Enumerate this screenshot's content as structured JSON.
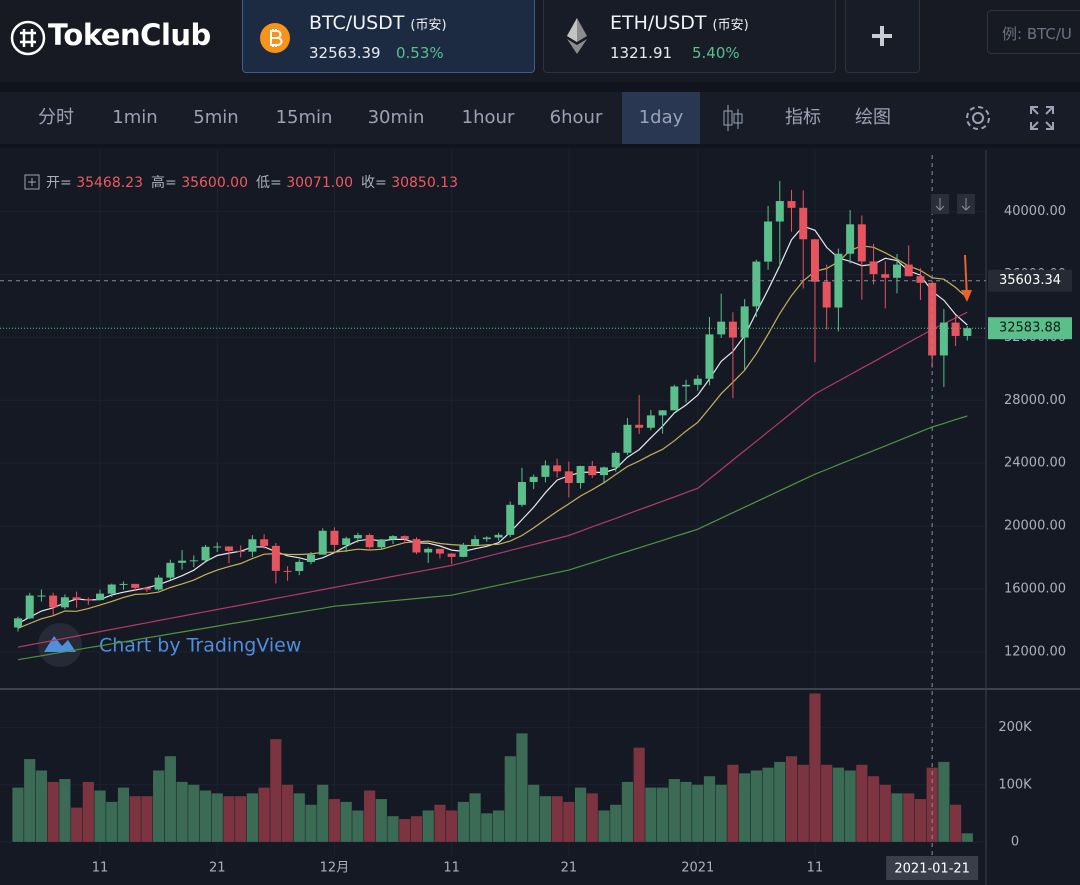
{
  "header": {
    "logo": "TokenClub",
    "tabs": [
      {
        "pair": "BTC/USDT",
        "exchange": "(币安)",
        "price": 32563.39,
        "change": "0.53%",
        "active": true
      },
      {
        "pair": "ETH/USDT",
        "exchange": "(币安)",
        "price": 1321.91,
        "change": "5.40%",
        "active": false
      }
    ],
    "search_placeholder": "例: BTC/U"
  },
  "toolbar": {
    "intervals": [
      {
        "label": "分时"
      },
      {
        "label": "1min"
      },
      {
        "label": "5min"
      },
      {
        "label": "15min"
      },
      {
        "label": "30min"
      },
      {
        "label": "1hour"
      },
      {
        "label": "6hour"
      },
      {
        "label": "1day",
        "active": true
      }
    ],
    "tools": [
      "指标",
      "绘图"
    ]
  },
  "chart_data": {
    "type": "candlestick",
    "legend": [
      {
        "name": "开=",
        "value": 35468.23,
        "label": "35468.23"
      },
      {
        "name": "高=",
        "value": 35600,
        "label": "35600.00"
      },
      {
        "name": "低=",
        "value": 30071,
        "label": "30071.00"
      },
      {
        "name": "收=",
        "value": 30850.13,
        "label": "30850.13"
      }
    ],
    "watermark": "Chart by TradingView",
    "categories": [
      null,
      null,
      null,
      null,
      null,
      null,
      null,
      "11",
      null,
      null,
      null,
      null,
      null,
      null,
      null,
      null,
      null,
      "21",
      null,
      null,
      null,
      null,
      null,
      null,
      null,
      null,
      null,
      "12月",
      null,
      null,
      null,
      null,
      null,
      null,
      null,
      null,
      null,
      "11",
      null,
      null,
      null,
      null,
      null,
      null,
      null,
      null,
      null,
      "21",
      null,
      null,
      null,
      null,
      null,
      null,
      null,
      null,
      null,
      null,
      "2021",
      null,
      null,
      null,
      null,
      null,
      null,
      null,
      null,
      null,
      "11",
      null,
      null,
      null,
      null,
      null,
      null,
      null,
      null,
      null,
      null,
      null,
      null,
      null
    ],
    "open": [
      13550,
      14130,
      15580,
      15580,
      14830,
      15470,
      15330,
      15300,
      15700,
      16280,
      16320,
      16070,
      15960,
      16720,
      17660,
      17800,
      17820,
      18680,
      18700,
      18420,
      18370,
      19160,
      18740,
      17150,
      17140,
      17720,
      18180,
      19700,
      18800,
      19220,
      19430,
      18650,
      19150,
      19360,
      19170,
      18320,
      18550,
      18250,
      18040,
      18800,
      19170,
      19270,
      19440,
      21350,
      22800,
      23130,
      23860,
      23480,
      22740,
      23820,
      23240,
      23730,
      24660,
      26440,
      26250,
      27040,
      27360,
      28880,
      28980,
      29370,
      32190,
      33000,
      31990,
      33970,
      36820,
      39370,
      40670,
      40240,
      38240,
      35540,
      33900,
      37320,
      39190,
      36830,
      36020,
      35790,
      36630,
      35890,
      35468.23,
      30850.13,
      32940,
      32090
    ],
    "high": [
      14240,
      15750,
      15960,
      15760,
      15650,
      15830,
      15460,
      15950,
      16340,
      16480,
      16330,
      16160,
      16880,
      17860,
      18480,
      18130,
      18800,
      18950,
      18720,
      18770,
      19420,
      19480,
      18920,
      17450,
      17880,
      18350,
      19860,
      19920,
      19320,
      19570,
      19530,
      19180,
      19420,
      19410,
      19290,
      18640,
      18560,
      18280,
      18930,
      19410,
      19350,
      19570,
      21560,
      23700,
      23280,
      24170,
      24290,
      24100,
      23840,
      24140,
      23790,
      24760,
      26870,
      28330,
      27390,
      27380,
      28990,
      29300,
      29600,
      33300,
      34780,
      33600,
      34440,
      36940,
      40360,
      41950,
      41380,
      41350,
      38260,
      36630,
      37650,
      40100,
      39750,
      37950,
      36840,
      37300,
      37850,
      36400,
      35600,
      33800,
      33400,
      32720
    ],
    "low": [
      13290,
      14090,
      15200,
      14360,
      14720,
      14810,
      14990,
      15270,
      15480,
      15950,
      15860,
      15810,
      15880,
      16560,
      17230,
      17380,
      17750,
      18350,
      17630,
      18010,
      18030,
      18570,
      16350,
      16520,
      16880,
      17570,
      18180,
      18320,
      18350,
      18940,
      18570,
      18510,
      18860,
      18920,
      18210,
      17650,
      17940,
      17580,
      18020,
      18760,
      19000,
      19080,
      19300,
      21230,
      22350,
      22780,
      23090,
      21820,
      22380,
      23060,
      22700,
      23470,
      24520,
      25860,
      26090,
      25880,
      27360,
      27850,
      28620,
      28950,
      31960,
      28130,
      29900,
      33300,
      36300,
      36500,
      38720,
      35110,
      30420,
      32500,
      32380,
      36700,
      34400,
      35370,
      33850,
      34800,
      35890,
      34380,
      30071,
      28850,
      31450,
      31800
    ],
    "close": [
      14130,
      15580,
      15580,
      14830,
      15470,
      15330,
      15300,
      15700,
      16280,
      16320,
      16070,
      15960,
      16720,
      17660,
      17800,
      17820,
      18680,
      18700,
      18420,
      18370,
      19160,
      18740,
      17150,
      17140,
      17720,
      18180,
      19700,
      18800,
      19220,
      19430,
      18650,
      19150,
      19360,
      19170,
      18320,
      18550,
      18250,
      18040,
      18800,
      19170,
      19270,
      19440,
      21350,
      22800,
      23130,
      23860,
      23480,
      22740,
      23820,
      23240,
      23730,
      24660,
      26440,
      26250,
      27040,
      27360,
      28880,
      28980,
      29370,
      32190,
      33000,
      31990,
      33970,
      36820,
      39370,
      40670,
      40240,
      38240,
      35540,
      33900,
      37320,
      39190,
      36830,
      36020,
      35790,
      36630,
      35890,
      35468.23,
      30850.13,
      32940,
      32090,
      32583.88
    ],
    "volume": [
      95000,
      145000,
      125000,
      105000,
      110000,
      60000,
      105000,
      90000,
      70000,
      95000,
      80000,
      80000,
      125000,
      150000,
      105000,
      100000,
      90000,
      85000,
      80000,
      80000,
      85000,
      95000,
      180000,
      100000,
      85000,
      65000,
      100000,
      75000,
      70000,
      55000,
      90000,
      75000,
      45000,
      40000,
      45000,
      55000,
      65000,
      55000,
      70000,
      85000,
      50000,
      55000,
      150000,
      190000,
      100000,
      80000,
      80000,
      70000,
      95000,
      85000,
      55000,
      65000,
      105000,
      165000,
      95000,
      95000,
      110000,
      105000,
      100000,
      115000,
      100000,
      135000,
      120000,
      125000,
      130000,
      140000,
      150000,
      135000,
      260000,
      135000,
      130000,
      125000,
      135000,
      115000,
      100000,
      85000,
      85000,
      75000,
      130000,
      140000,
      65000,
      15000
    ],
    "moving_averages": [
      {
        "color": "#e6e8ee",
        "values": [
          13800,
          14200,
          14600,
          14800,
          15120,
          15360,
          15300,
          15330,
          15620,
          15790,
          15930,
          16070,
          16270,
          16550,
          16840,
          17190,
          17740,
          18130,
          18280,
          18400,
          18670,
          18680,
          18370,
          18110,
          17980,
          17790,
          17980,
          18310,
          18720,
          19070,
          19160,
          19050,
          19160,
          19150,
          18930,
          18910,
          18730,
          18470,
          18390,
          18560,
          18710,
          18940,
          19610,
          20410,
          21200,
          22120,
          22920,
          23200,
          23410,
          23430,
          23400,
          23640,
          24380,
          24860,
          25620,
          26350,
          27190,
          27700,
          28330,
          29360,
          30480,
          31110,
          32100,
          33590,
          35030,
          36560,
          38210,
          39070,
          38810,
          37720,
          37050,
          36840,
          36560,
          36650,
          37030,
          36890,
          36230,
          35960,
          34930,
          34360,
          33450,
          32790
        ]
      },
      {
        "color": "#c7b15a",
        "values": [
          13500,
          13800,
          14100,
          14300,
          14600,
          14580,
          14750,
          14970,
          15210,
          15460,
          15650,
          15690,
          15800,
          16090,
          16320,
          16560,
          16910,
          17200,
          17420,
          17620,
          17930,
          18210,
          18250,
          18200,
          18190,
          18230,
          18330,
          18340,
          18420,
          18530,
          18480,
          18520,
          18740,
          18940,
          19000,
          19040,
          18890,
          18820,
          18770,
          18750,
          18810,
          18840,
          19040,
          19400,
          19880,
          20420,
          20930,
          21410,
          21910,
          22320,
          22760,
          23280,
          23790,
          24140,
          24530,
          24880,
          25420,
          26040,
          26600,
          27490,
          28420,
          29150,
          29900,
          30960,
          32200,
          33520,
          34660,
          35590,
          36200,
          36380,
          36810,
          37530,
          37820,
          37730,
          37380,
          36970,
          36540,
          36260,
          35790,
          35700,
          35170,
          34510
        ]
      },
      {
        "color": "#b23a66",
        "values": [
          12300,
          12440,
          12580,
          12720,
          12860,
          13000,
          13140,
          13290,
          13430,
          13570,
          13710,
          13850,
          13990,
          14130,
          14270,
          14410,
          14550,
          14690,
          14830,
          14970,
          15110,
          15260,
          15400,
          15540,
          15680,
          15820,
          15960,
          16100,
          16240,
          16380,
          16520,
          16660,
          16800,
          16940,
          17080,
          17220,
          17360,
          17500,
          17690,
          17880,
          18070,
          18260,
          18450,
          18640,
          18830,
          19020,
          19210,
          19400,
          19670,
          19950,
          20220,
          20490,
          20760,
          21040,
          21310,
          21580,
          21850,
          22130,
          22400,
          23000,
          23600,
          24200,
          24800,
          25400,
          26000,
          26600,
          27200,
          27800,
          28400,
          28810,
          29220,
          29630,
          30040,
          30450,
          30860,
          31270,
          31680,
          32090,
          32500,
          32870,
          33230,
          33600
        ]
      },
      {
        "color": "#4f9440",
        "values": [
          11500,
          11630,
          11750,
          11880,
          12000,
          12130,
          12260,
          12380,
          12510,
          12630,
          12760,
          12890,
          13010,
          13140,
          13260,
          13390,
          13510,
          13640,
          13770,
          13890,
          14020,
          14140,
          14270,
          14400,
          14520,
          14650,
          14770,
          14900,
          14970,
          15040,
          15110,
          15180,
          15250,
          15320,
          15390,
          15460,
          15530,
          15600,
          15760,
          15920,
          16080,
          16240,
          16400,
          16560,
          16720,
          16880,
          17040,
          17200,
          17440,
          17670,
          17910,
          18150,
          18380,
          18620,
          18850,
          19090,
          19330,
          19560,
          19800,
          20150,
          20500,
          20850,
          21200,
          21550,
          21900,
          22250,
          22600,
          22950,
          23300,
          23600,
          23900,
          24200,
          24500,
          24800,
          25100,
          25400,
          25700,
          26000,
          26300,
          26530,
          26770,
          27000
        ]
      }
    ],
    "ylim": [
      9700,
      43600
    ],
    "yticks": [
      {
        "value": 12000,
        "label": "12000.00"
      },
      {
        "value": 16000,
        "label": "16000.00"
      },
      {
        "value": 20000,
        "label": "20000.00"
      },
      {
        "value": 24000,
        "label": "24000.00"
      },
      {
        "value": 28000,
        "label": "28000.00"
      },
      {
        "value": 32000,
        "label": "32000.00"
      },
      {
        "value": 36000,
        "label": "36000.00"
      },
      {
        "value": 40000,
        "label": "40000.00"
      }
    ],
    "volume_ylim": [
      -23000,
      266000
    ],
    "volume_yticks": [
      0,
      {
        "value": 100000,
        "label": "100K"
      },
      {
        "value": 200000,
        "label": "200K"
      }
    ],
    "price_lines": [
      {
        "value": 35603.34,
        "label": "35603.34",
        "style": "crosshair"
      },
      {
        "value": 32583.88,
        "label": "32583.88",
        "style": "last"
      }
    ],
    "crosshair": {
      "index": 78,
      "label": "2021-01-21"
    },
    "grid": true,
    "up_color": "#5bbf8c",
    "down_color": "#e5545f",
    "volume_up_color": "#3b6b55",
    "volume_down_color": "#7b3440"
  }
}
